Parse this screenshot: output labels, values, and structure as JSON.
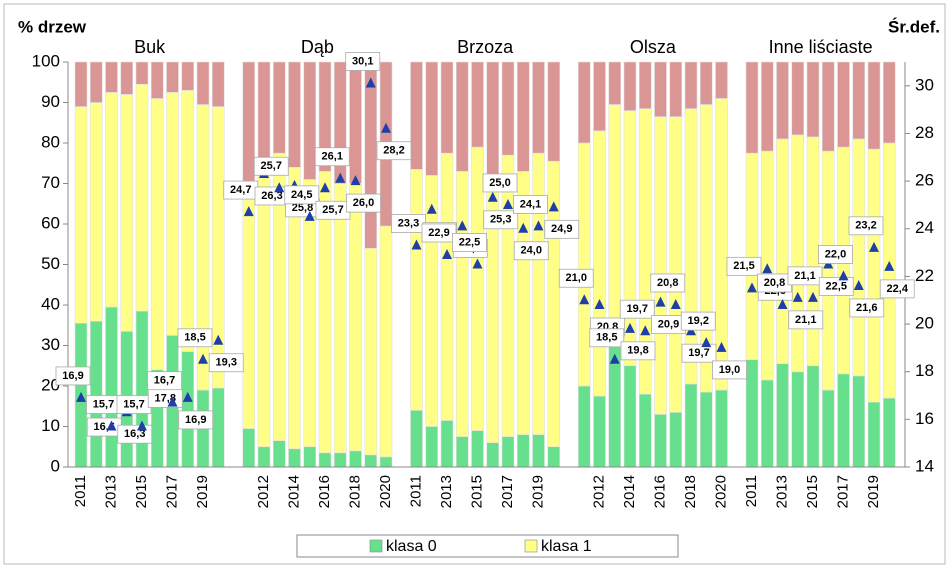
{
  "chart_data": {
    "type": "bar",
    "stacked": true,
    "y_label": "% drzew",
    "y2_label": "Śr.def.",
    "groups": [
      {
        "name": "Buk",
        "categories": [
          "2011",
          null,
          "2013",
          null,
          "2015",
          null,
          "2017",
          null,
          "2019",
          null
        ]
      },
      {
        "name": "Dąb",
        "categories": [
          null,
          "2012",
          null,
          "2014",
          null,
          "2016",
          null,
          "2018",
          null,
          "2020"
        ]
      },
      {
        "name": "Brzoza",
        "categories": [
          "2011",
          null,
          "2013",
          null,
          "2015",
          null,
          "2017",
          null,
          "2019",
          null
        ]
      },
      {
        "name": "Olsza",
        "categories": [
          null,
          "2012",
          null,
          "2014",
          null,
          "2016",
          null,
          "2018",
          null,
          "2020"
        ]
      },
      {
        "name": "Inne liściaste",
        "categories": [
          "2011",
          null,
          "2013",
          null,
          "2015",
          null,
          "2017",
          null,
          "2019",
          null
        ]
      }
    ],
    "series": [
      {
        "name": "klasa 0",
        "color": "#66e08c",
        "values": [
          35.5,
          36,
          39.5,
          33.5,
          38.5,
          24,
          32.5,
          28.5,
          19,
          19.5,
          9.5,
          5,
          6.5,
          4.5,
          5,
          3.5,
          3.5,
          4,
          3,
          2.5,
          14,
          10,
          11.5,
          7.5,
          9,
          6,
          7.5,
          8,
          8,
          5,
          20,
          17.5,
          30,
          25,
          18,
          13,
          13.5,
          20.5,
          18.5,
          19,
          26.5,
          21.5,
          25.5,
          23.5,
          25,
          19,
          23,
          22.5,
          16,
          17
        ]
      },
      {
        "name": "klasa 1",
        "color": "#ffff88",
        "values": [
          53.5,
          54,
          53,
          58.5,
          56,
          67,
          60,
          64.5,
          70.5,
          69.5,
          60,
          67.5,
          71,
          69.5,
          66,
          69.5,
          66.5,
          66,
          51,
          57,
          59.5,
          62,
          66,
          65.5,
          70,
          65.5,
          69.5,
          65,
          69.5,
          70.5,
          60,
          65.5,
          59.5,
          63,
          70.5,
          73.5,
          73,
          68,
          71,
          72,
          51,
          56.5,
          55.5,
          58.5,
          56.5,
          59,
          56,
          58.5,
          62.5,
          63
        ]
      },
      {
        "color": "#d99694",
        "values": [
          11,
          10,
          7.5,
          8,
          5.5,
          9,
          7.5,
          7,
          10.5,
          11,
          30.5,
          27.5,
          22.5,
          26,
          29,
          27,
          30,
          30,
          46,
          40.5,
          26.5,
          28,
          22.5,
          27,
          21,
          28.5,
          23,
          27,
          22.5,
          24.5,
          20,
          17,
          10.5,
          12,
          11.5,
          13.5,
          13.5,
          11.5,
          10.5,
          9,
          22.5,
          22,
          19,
          18,
          18.5,
          22,
          21,
          19,
          21.5,
          20
        ]
      },
      {
        "type": "scatter",
        "marker": "triangle",
        "axis": "y2",
        "color": "#1f3fa8",
        "values": [
          16.9,
          16.6,
          15.7,
          16.3,
          15.7,
          17.8,
          16.7,
          16.9,
          18.5,
          19.3,
          24.7,
          26.3,
          25.7,
          25.8,
          24.5,
          25.7,
          26.1,
          26.0,
          30.1,
          28.2,
          23.3,
          24.8,
          22.9,
          24.1,
          22.5,
          25.3,
          25.0,
          24.0,
          24.1,
          24.9,
          21.0,
          20.8,
          18.5,
          19.8,
          19.7,
          20.9,
          20.8,
          19.7,
          19.2,
          19.0,
          21.5,
          22.3,
          20.8,
          21.1,
          21.1,
          22.5,
          22.0,
          21.6,
          23.2,
          22.4
        ],
        "value_labels": [
          "16,9",
          "16,6",
          "15,7",
          "16,3",
          "15,7",
          "17,8",
          "16,7",
          "16,9",
          "18,5",
          "19,3",
          "24,7",
          "26,3",
          "25,7",
          "25,8",
          "24,5",
          "25,7",
          "26,1",
          "26,0",
          "30,1",
          "28,2",
          "23,3",
          "24,8",
          "22,9",
          "24,1",
          "22,5",
          "25,3",
          "25,0",
          "24,0",
          "24,1",
          "24,9",
          "21,0",
          "20,8",
          "18,5",
          "19,8",
          "19,7",
          "20,9",
          "20,8",
          "19,7",
          "19,2",
          "19,0",
          "21,5",
          "22,3",
          "20,8",
          "21,1",
          "21,1",
          "22,5",
          "22,0",
          "21,6",
          "23,2",
          "22,4"
        ]
      }
    ],
    "ylim": [
      0,
      100
    ],
    "yticks": [
      0,
      10,
      20,
      30,
      40,
      50,
      60,
      70,
      80,
      90,
      100
    ],
    "y2lim": [
      14,
      31
    ],
    "y2ticks": [
      14,
      16,
      18,
      20,
      22,
      24,
      26,
      28,
      30
    ],
    "legend": "bottom"
  }
}
